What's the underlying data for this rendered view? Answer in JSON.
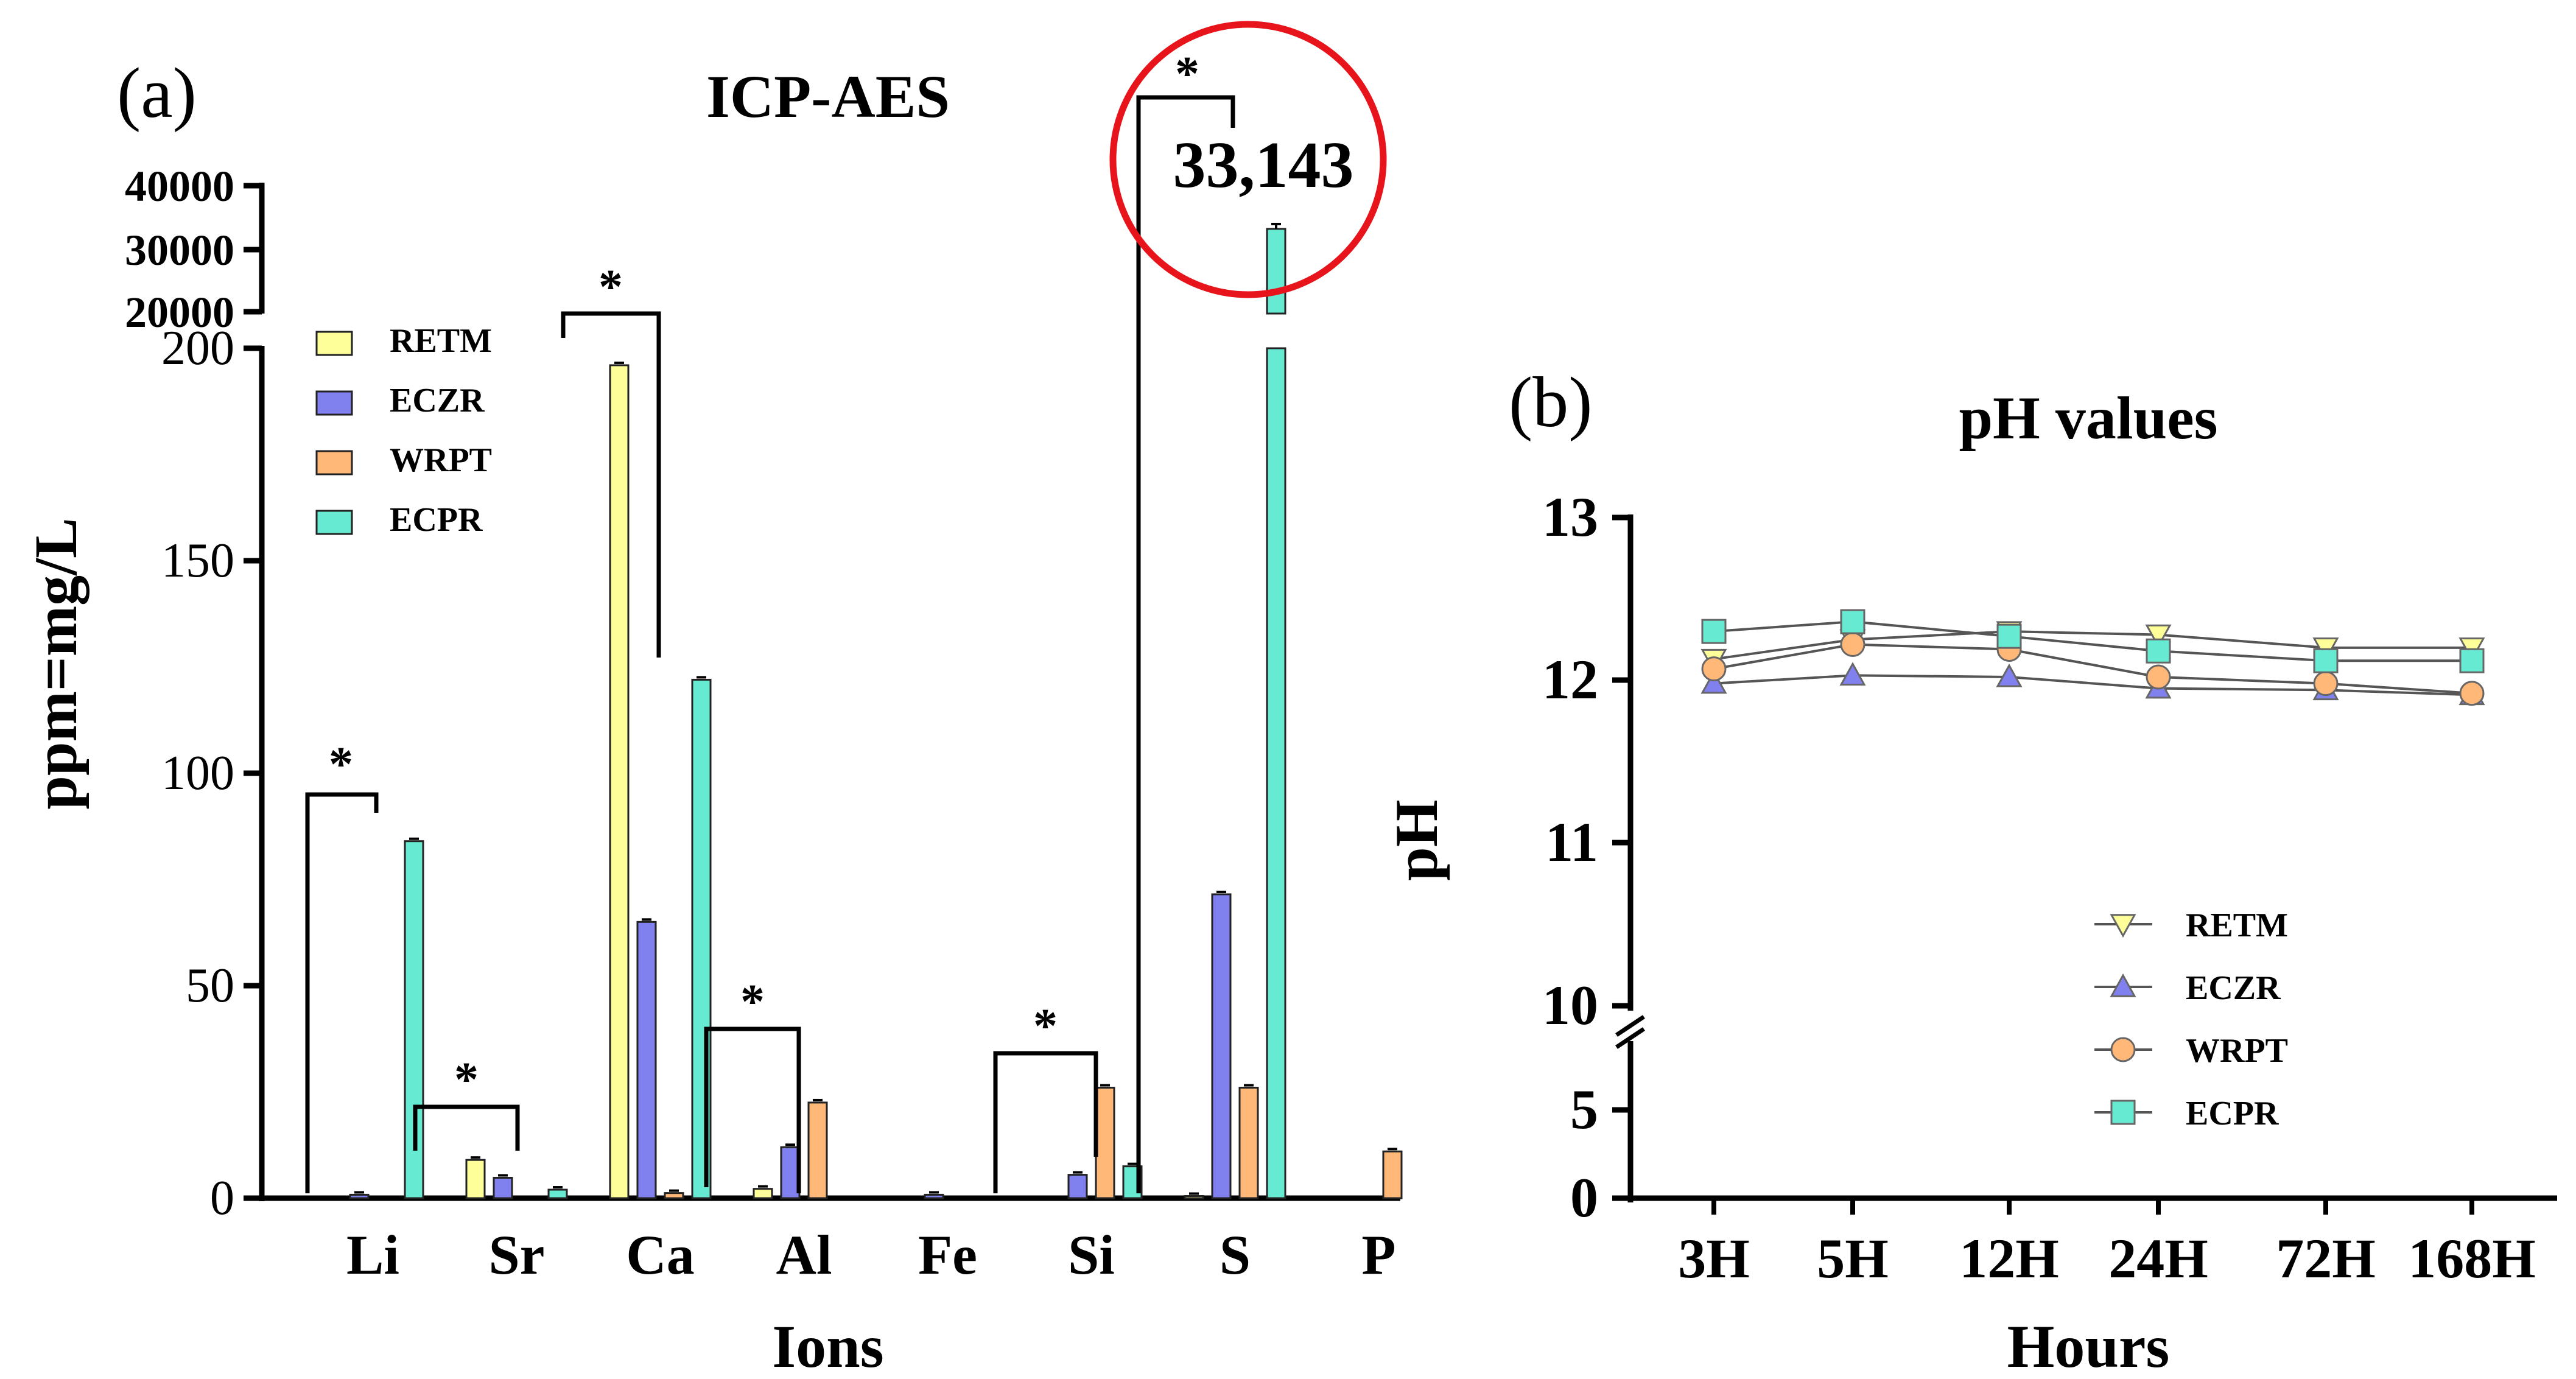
{
  "panel_a": {
    "label": "(a)",
    "title": "ICP-AES",
    "ylabel": "ppm=mg/L",
    "xlabel": "Ions",
    "upper_ticks": [
      "40000",
      "30000",
      "20000"
    ],
    "lower_ticks": [
      "0",
      "50",
      "100",
      "150",
      "200"
    ],
    "callout": "33,143",
    "sig_marker": "*",
    "legend": [
      "RETM",
      "ECZR",
      "WRPT",
      "ECPR"
    ]
  },
  "panel_b": {
    "label": "(b)",
    "title": "pH values",
    "ylabel": "pH",
    "xlabel": "Hours",
    "ticks_upper": [
      "10",
      "11",
      "12",
      "13"
    ],
    "ticks_lower": [
      "0",
      "5"
    ],
    "legend": [
      "RETM",
      "ECZR",
      "WRPT",
      "ECPR"
    ]
  },
  "colors": {
    "RETM": "#ffff99",
    "ECZR": "#8080ee",
    "WRPT": "#ffb877",
    "ECPR": "#66ead2",
    "highlight": "#e8141b"
  },
  "chart_data": [
    {
      "type": "bar",
      "title": "ICP-AES",
      "xlabel": "Ions",
      "ylabel": "ppm=mg/L",
      "categories": [
        "Li",
        "Sr",
        "Ca",
        "Al",
        "Fe",
        "Si",
        "S",
        "P"
      ],
      "series": [
        {
          "name": "RETM",
          "values": [
            0,
            9,
            196,
            2.2,
            0,
            0,
            0.5,
            0
          ]
        },
        {
          "name": "ECZR",
          "values": [
            0.8,
            4.8,
            65,
            12,
            0.8,
            5.5,
            71.5,
            0
          ]
        },
        {
          "name": "WRPT",
          "values": [
            0,
            0,
            1.2,
            22.5,
            0,
            26,
            26,
            11
          ]
        },
        {
          "name": "ECPR",
          "values": [
            84,
            2,
            122,
            0,
            0,
            7.5,
            33143,
            0
          ]
        }
      ],
      "y_axis_break": {
        "lower_range": [
          0,
          200
        ],
        "upper_range": [
          20000,
          40000
        ]
      },
      "significance": [
        "Li",
        "Sr",
        "Ca",
        "Al",
        "Si",
        "S"
      ],
      "annotation": "33,143"
    },
    {
      "type": "line",
      "title": "pH values",
      "xlabel": "Hours",
      "ylabel": "pH",
      "x": [
        "3H",
        "5H",
        "12H",
        "24H",
        "72H",
        "168H"
      ],
      "series": [
        {
          "name": "RETM",
          "marker": "triangle-down",
          "values": [
            12.13,
            12.25,
            12.3,
            12.28,
            12.2,
            12.2
          ]
        },
        {
          "name": "ECZR",
          "marker": "triangle-up",
          "values": [
            11.98,
            12.03,
            12.02,
            11.95,
            11.94,
            11.91
          ]
        },
        {
          "name": "WRPT",
          "marker": "circle",
          "values": [
            12.07,
            12.22,
            12.19,
            12.02,
            11.98,
            11.92
          ]
        },
        {
          "name": "ECPR",
          "marker": "square",
          "values": [
            12.3,
            12.36,
            12.27,
            12.18,
            12.12,
            12.12
          ]
        }
      ],
      "y_axis_break": {
        "lower_range": [
          0,
          5
        ],
        "upper_range": [
          10,
          13
        ]
      }
    }
  ]
}
